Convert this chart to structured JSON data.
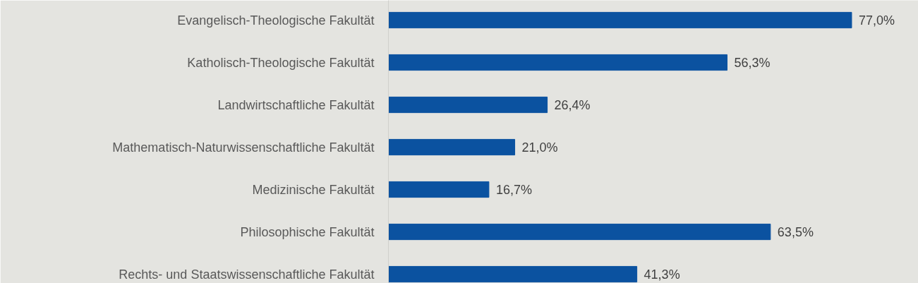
{
  "chart_data": {
    "type": "bar",
    "orientation": "horizontal",
    "categories": [
      "Evangelisch-Theologische Fakultät",
      "Katholisch-Theologische Fakultät",
      "Landwirtschaftliche Fakultät",
      "Mathematisch-Naturwissenschaftliche Fakultät",
      "Medizinische Fakultät",
      "Philosophische Fakultät",
      "Rechts- und Staatswissenschaftliche Fakultät"
    ],
    "values": [
      77.0,
      56.3,
      26.4,
      21.0,
      16.7,
      63.5,
      41.3
    ],
    "value_labels": [
      "77,0%",
      "56,3%",
      "26,4%",
      "21,0%",
      "16,7%",
      "63,5%",
      "41,3%"
    ],
    "color": "#0b52a0"
  }
}
